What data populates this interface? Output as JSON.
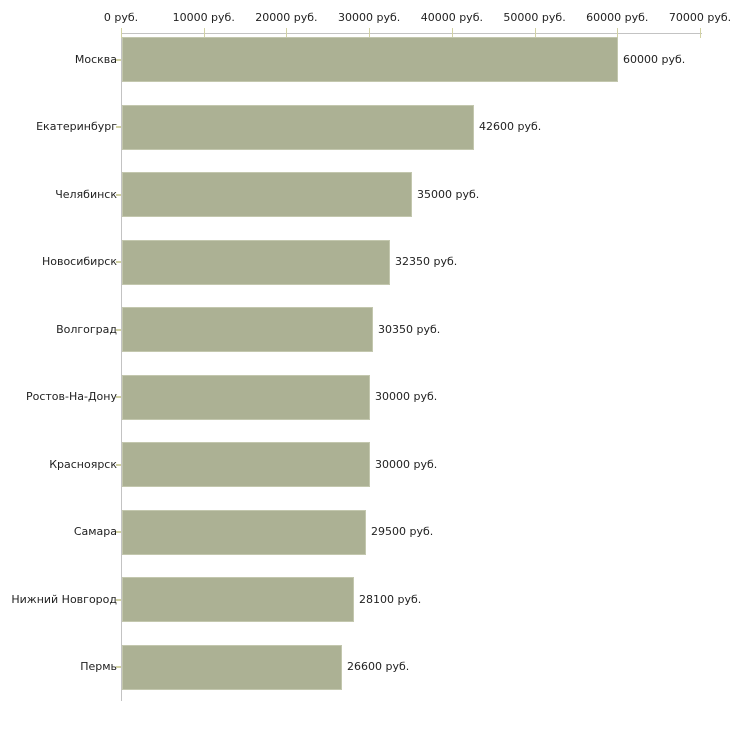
{
  "chart_data": {
    "type": "bar",
    "orientation": "horizontal",
    "title": "",
    "categories": [
      "Москва",
      "Екатеринбург",
      "Челябинск",
      "Новосибирск",
      "Волгоград",
      "Ростов-На-Дону",
      "Красноярск",
      "Самара",
      "Нижний Новгород",
      "Пермь"
    ],
    "values": [
      60000,
      42600,
      35000,
      32350,
      30350,
      30000,
      30000,
      29500,
      28100,
      26600
    ],
    "value_labels": [
      "60000 руб.",
      "42600 руб.",
      "35000 руб.",
      "32350 руб.",
      "30350 руб.",
      "30000 руб.",
      "30000 руб.",
      "29500 руб.",
      "28100 руб.",
      "26600 руб."
    ],
    "x_tick_values": [
      0,
      10000,
      20000,
      30000,
      40000,
      50000,
      60000,
      70000
    ],
    "x_tick_labels": [
      "0 руб.",
      "10000 руб.",
      "20000 руб.",
      "30000 руб.",
      "40000 руб.",
      "50000 руб.",
      "60000 руб.",
      "70000 руб."
    ],
    "xlim": [
      0,
      70000
    ],
    "grid": false,
    "legend": false,
    "colors": {
      "bar_fill": "#acb194",
      "bar_border": "#c3c7ae",
      "axis_line": "#c3c3c3",
      "tick_mark": "#d2d2a4",
      "label_text": "#222222",
      "background": "#ffffff"
    }
  }
}
